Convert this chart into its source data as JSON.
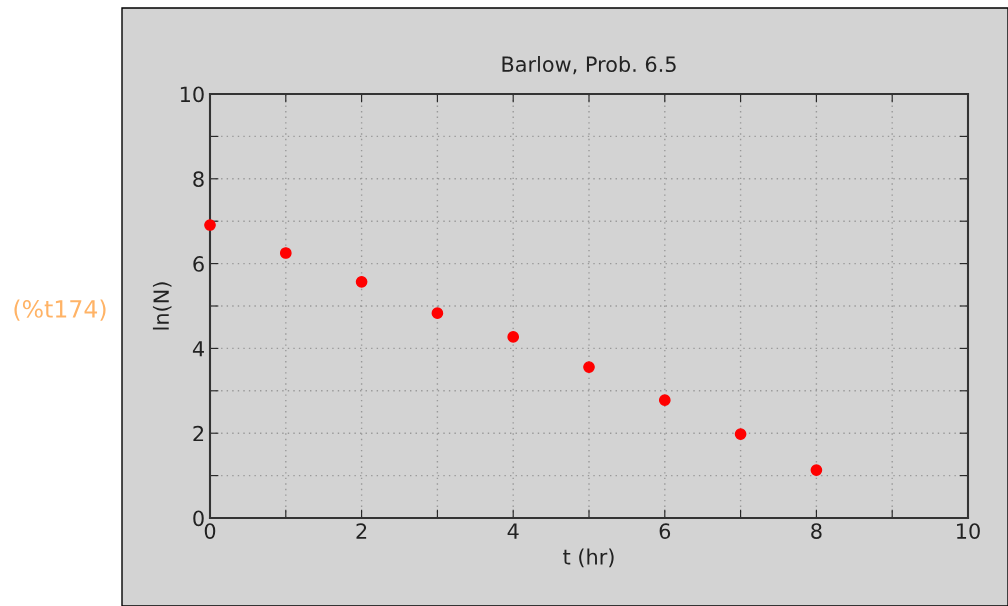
{
  "chart_data": {
    "type": "scatter",
    "title": "Barlow, Prob. 6.5",
    "xlabel": "t (hr)",
    "ylabel": "ln(N)",
    "annotations": [
      "(%t174)"
    ],
    "x": [
      0,
      1,
      2,
      3,
      4,
      5,
      6,
      7,
      8
    ],
    "series": [
      {
        "color": "#ff0000",
        "values": [
          6.91,
          6.25,
          5.57,
          4.83,
          4.27,
          3.56,
          2.78,
          1.98,
          1.13
        ]
      }
    ],
    "xlim": [
      0,
      10
    ],
    "ylim": [
      0,
      10
    ],
    "xticks": [
      0,
      {
        "value": 1,
        "label": null
      },
      2,
      {
        "value": 3,
        "label": null
      },
      4,
      {
        "value": 5,
        "label": null
      },
      6,
      {
        "value": 7,
        "label": null
      },
      8,
      {
        "value": 9,
        "label": null
      },
      10
    ],
    "yticks": [
      0,
      {
        "value": 1,
        "label": null
      },
      2,
      {
        "value": 3,
        "label": null
      },
      4,
      {
        "value": 5,
        "label": null
      },
      6,
      {
        "value": 7,
        "label": null
      },
      8,
      {
        "value": 9,
        "label": null
      },
      10
    ],
    "grid": true,
    "marker": "circle"
  }
}
